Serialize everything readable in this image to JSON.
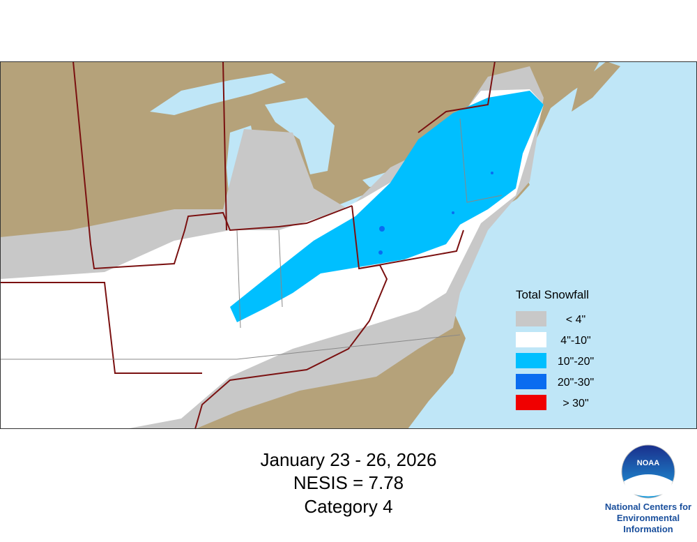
{
  "map": {
    "legend": {
      "title": "Total Snowfall",
      "items": [
        {
          "label": "< 4\"",
          "color": "#c8c8c8"
        },
        {
          "label": "4\"-10\"",
          "color": "#ffffff"
        },
        {
          "label": "10\"-20\"",
          "color": "#00bfff"
        },
        {
          "label": "20\"-30\"",
          "color": "#0a6cf0"
        },
        {
          "label": "> 30\"",
          "color": "#f00000"
        }
      ]
    }
  },
  "caption": {
    "lines": [
      "January 23 - 26, 2026",
      "NESIS = 7.78",
      "Category 4"
    ]
  },
  "logo": {
    "text": "NOAA",
    "org_lines": [
      "National Centers for",
      "Environmental",
      "Information"
    ]
  }
}
